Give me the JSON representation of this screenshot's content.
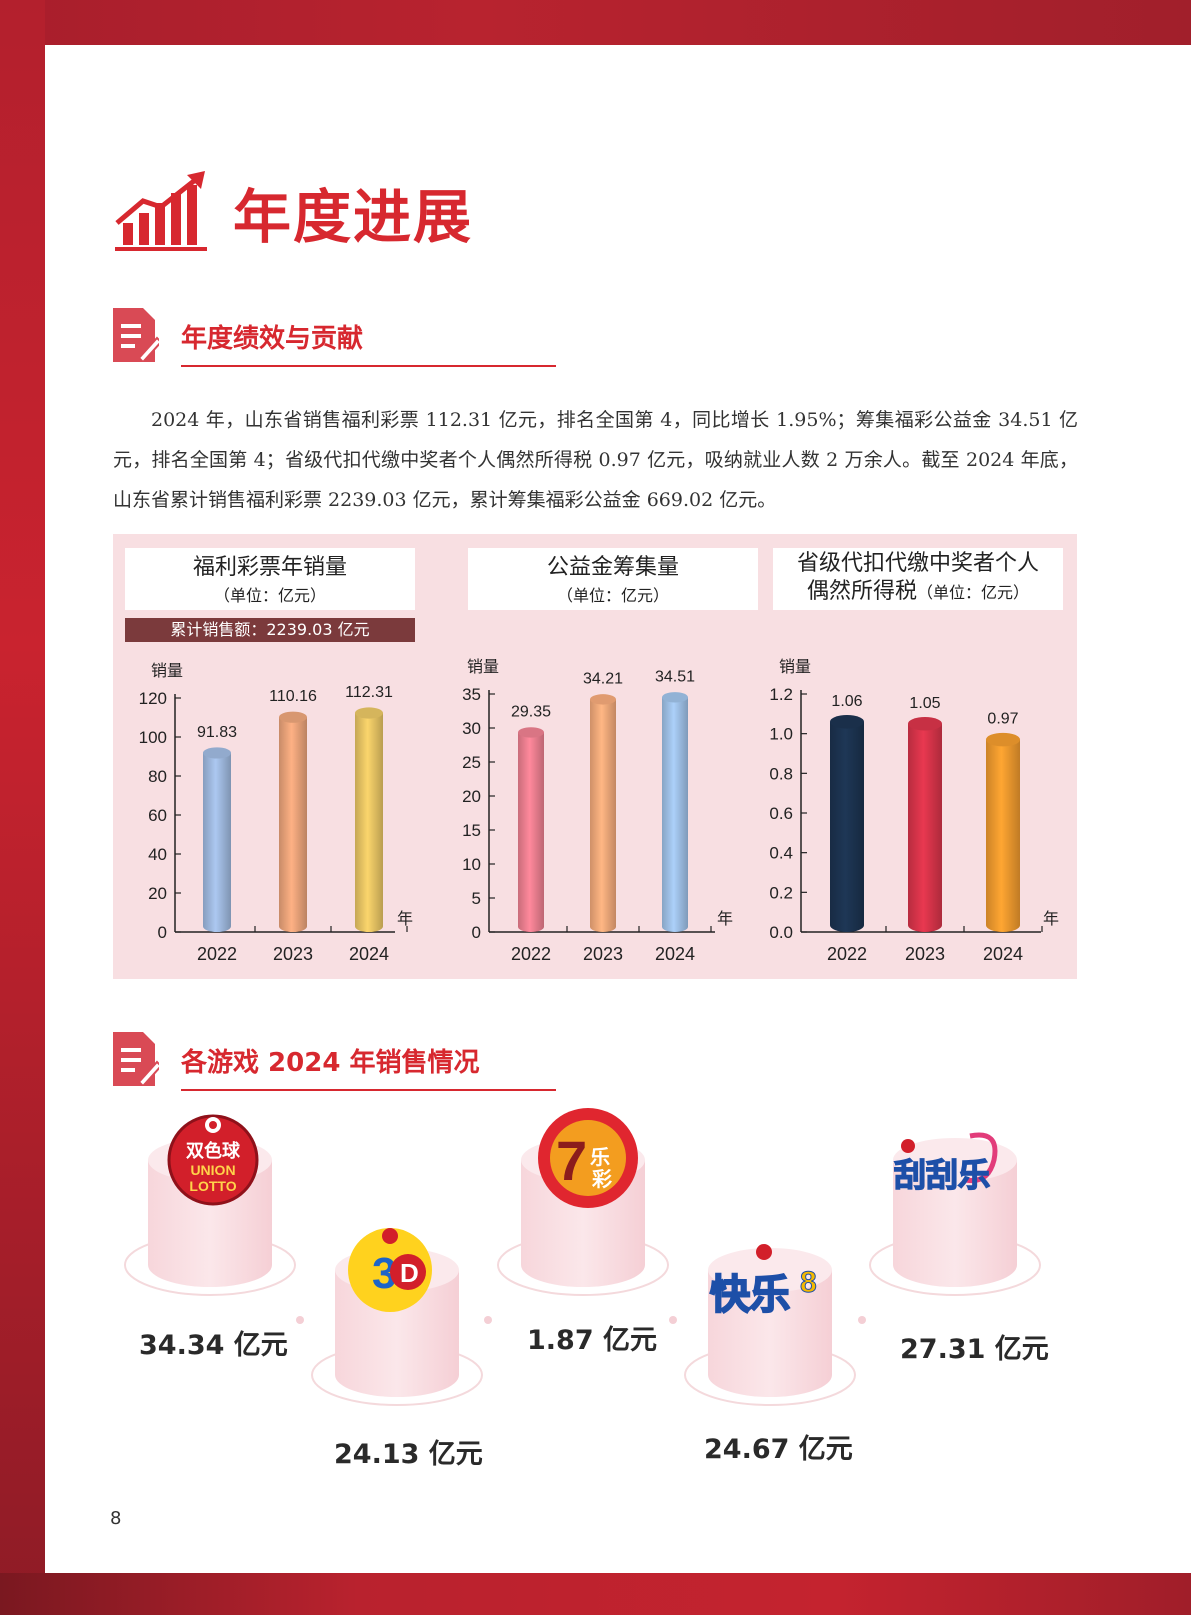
{
  "page_title": "年度进展",
  "section1": {
    "title": "年度绩效与贡献"
  },
  "section2": {
    "title": "各游戏 2024 年销售情况"
  },
  "paragraph": "2024 年，山东省销售福利彩票 112.31 亿元，排名全国第 4，同比增长 1.95%；筹集福彩公益金 34.51 亿元，排名全国第 4；省级代扣代缴中奖者个人偶然所得税 0.97 亿元，吸纳就业人数 2 万余人。截至 2024 年底，山东省累计销售福利彩票 2239.03 亿元，累计筹集福彩公益金 669.02 亿元。",
  "chart_data": [
    {
      "type": "bar",
      "title": "福利彩票年销量",
      "unit": "（单位：亿元）",
      "note": "累计销售额：2239.03 亿元",
      "ylabel": "销量",
      "xlabel": "年",
      "categories": [
        "2022",
        "2023",
        "2024"
      ],
      "values": [
        91.83,
        110.16,
        112.31
      ],
      "value_labels": [
        "91.83",
        "110.16",
        "112.31"
      ],
      "ylim": [
        0,
        120
      ],
      "yticks": [
        "0",
        "20",
        "40",
        "60",
        "80",
        "100",
        "120"
      ],
      "colors": [
        "#9fb9df",
        "#eba47a",
        "#e8c564"
      ]
    },
    {
      "type": "bar",
      "title": "公益金筹集量",
      "unit": "（单位：亿元）",
      "ylabel": "销量",
      "xlabel": "年",
      "categories": [
        "2022",
        "2023",
        "2024"
      ],
      "values": [
        29.35,
        34.21,
        34.51
      ],
      "value_labels": [
        "29.35",
        "34.21",
        "34.51"
      ],
      "ylim": [
        0,
        35
      ],
      "yticks": [
        "0",
        "5",
        "10",
        "15",
        "20",
        "25",
        "30",
        "35"
      ],
      "colors": [
        "#ec7f90",
        "#f4a97a",
        "#9fc1e7"
      ]
    },
    {
      "type": "bar",
      "title": "省级代扣代缴中奖者个人偶然所得税",
      "title_line1": "省级代扣代缴中奖者个人",
      "title_line2": "偶然所得税",
      "unit": "（单位：亿元）",
      "ylabel": "销量",
      "xlabel": "年",
      "categories": [
        "2022",
        "2023",
        "2024"
      ],
      "values": [
        1.06,
        1.05,
        0.97
      ],
      "value_labels": [
        "1.06",
        "1.05",
        "0.97"
      ],
      "ylim": [
        0,
        1.2
      ],
      "yticks": [
        "0.0",
        "0.2",
        "0.4",
        "0.6",
        "0.8",
        "1.0",
        "1.2"
      ],
      "colors": [
        "#1c3350",
        "#d8344a",
        "#f09a2e"
      ]
    }
  ],
  "games": [
    {
      "logo_text": "双色球 UNION LOTTO",
      "value": "34.34 亿元",
      "logo_color": "#d21f2a"
    },
    {
      "logo_text": "3D",
      "value": "24.13 亿元",
      "logo_color": "#1d64c8"
    },
    {
      "logo_text": "7乐彩",
      "value": "1.87 亿元",
      "logo_color": "#d21f2a"
    },
    {
      "logo_text": "快乐8",
      "value": "24.67 亿元",
      "logo_color": "#e2273a"
    },
    {
      "logo_text": "刮刮乐",
      "value": "27.31 亿元",
      "logo_color": "#e23c7a"
    }
  ],
  "page_number": "8"
}
